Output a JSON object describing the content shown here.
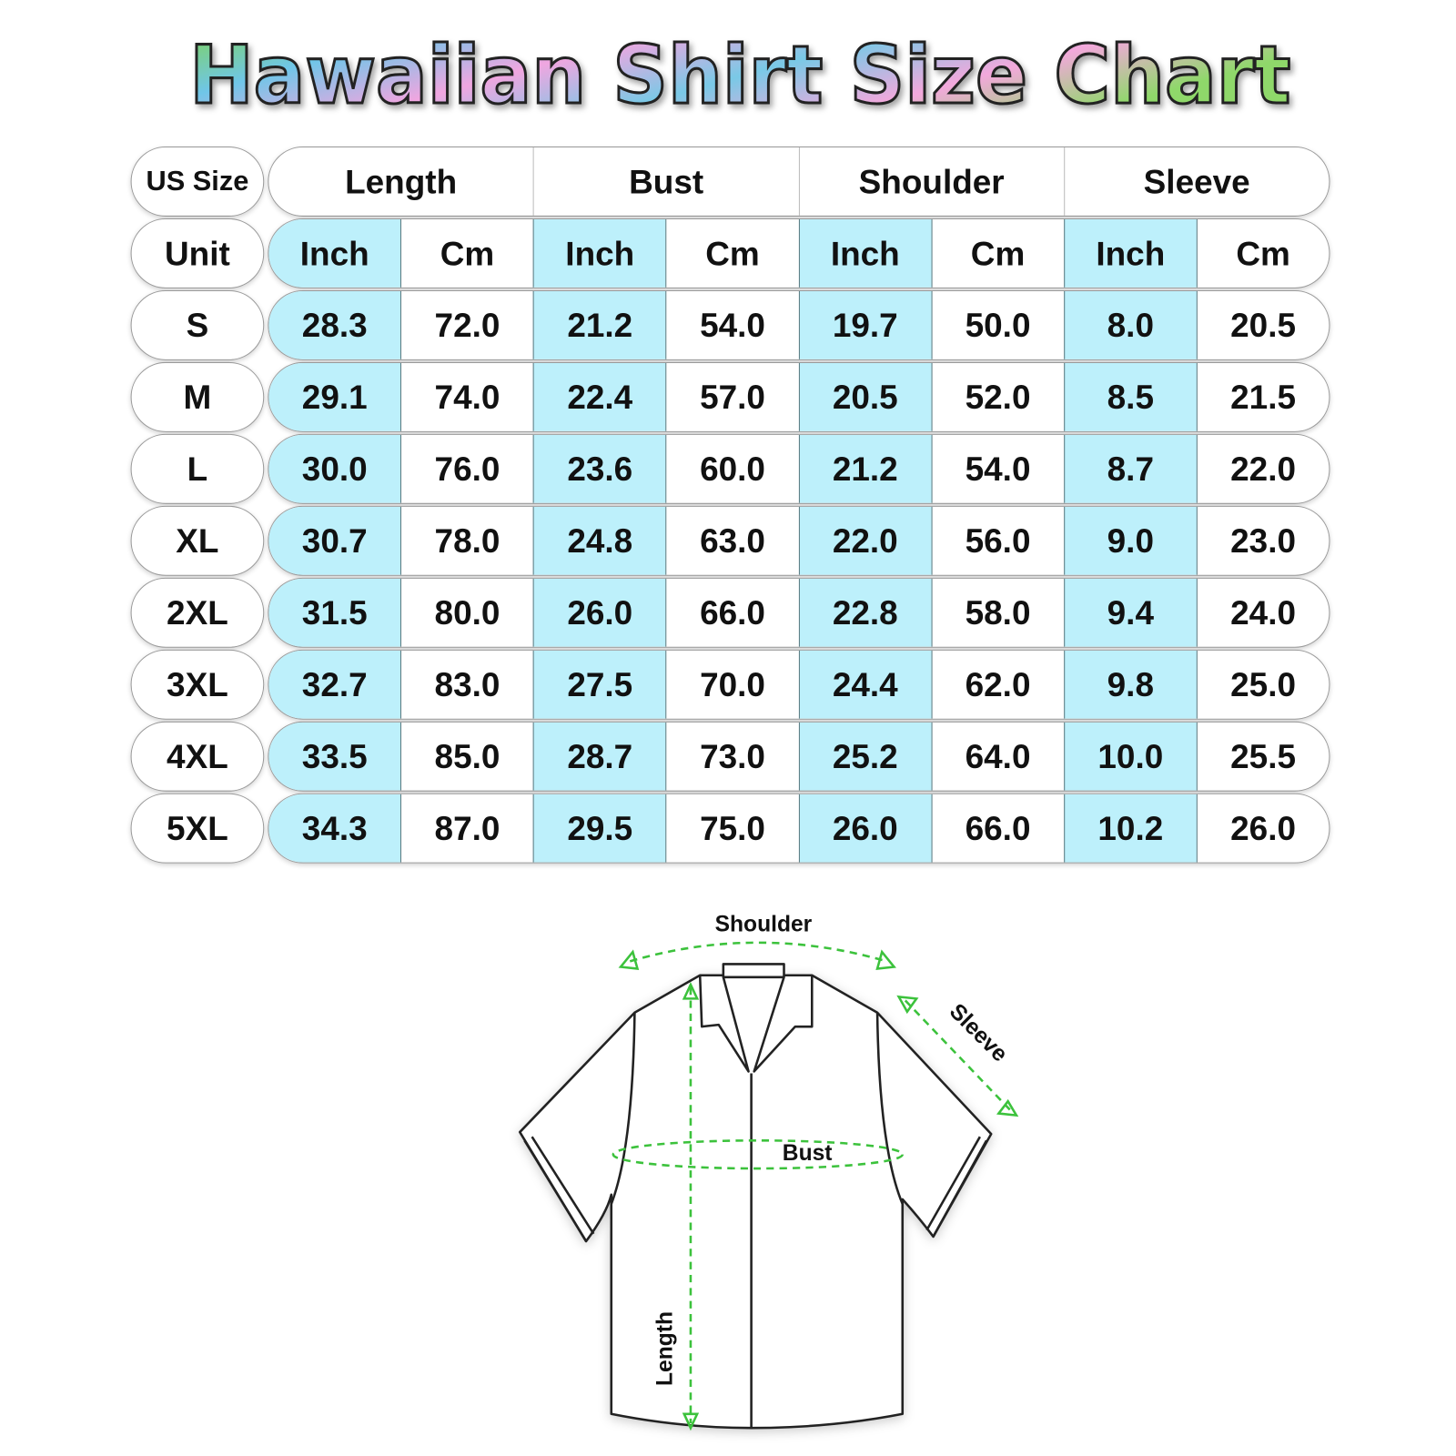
{
  "title": "Hawaiian Shirt Size Chart",
  "colors": {
    "inch_column": "#bdf0fb",
    "measure_line": "#3cc23c",
    "title_gradient": [
      "#7fd35a",
      "#6fc6e8",
      "#f0a6e0",
      "#79c9e6",
      "#8fd86a"
    ]
  },
  "table": {
    "corner_label": "US Size",
    "unit_label": "Unit",
    "groups": [
      "Length",
      "Bust",
      "Shoulder",
      "Sleeve"
    ],
    "units": [
      "Inch",
      "Cm",
      "Inch",
      "Cm",
      "Inch",
      "Cm",
      "Inch",
      "Cm"
    ],
    "rows": [
      {
        "size": "S",
        "values": [
          "28.3",
          "72.0",
          "21.2",
          "54.0",
          "19.7",
          "50.0",
          "8.0",
          "20.5"
        ]
      },
      {
        "size": "M",
        "values": [
          "29.1",
          "74.0",
          "22.4",
          "57.0",
          "20.5",
          "52.0",
          "8.5",
          "21.5"
        ]
      },
      {
        "size": "L",
        "values": [
          "30.0",
          "76.0",
          "23.6",
          "60.0",
          "21.2",
          "54.0",
          "8.7",
          "22.0"
        ]
      },
      {
        "size": "XL",
        "values": [
          "30.7",
          "78.0",
          "24.8",
          "63.0",
          "22.0",
          "56.0",
          "9.0",
          "23.0"
        ]
      },
      {
        "size": "2XL",
        "values": [
          "31.5",
          "80.0",
          "26.0",
          "66.0",
          "22.8",
          "58.0",
          "9.4",
          "24.0"
        ]
      },
      {
        "size": "3XL",
        "values": [
          "32.7",
          "83.0",
          "27.5",
          "70.0",
          "24.4",
          "62.0",
          "9.8",
          "25.0"
        ]
      },
      {
        "size": "4XL",
        "values": [
          "33.5",
          "85.0",
          "28.7",
          "73.0",
          "25.2",
          "64.0",
          "10.0",
          "25.5"
        ]
      },
      {
        "size": "5XL",
        "values": [
          "34.3",
          "87.0",
          "29.5",
          "75.0",
          "26.0",
          "66.0",
          "10.2",
          "26.0"
        ]
      }
    ]
  },
  "diagram": {
    "shoulder": "Shoulder",
    "sleeve": "Sleeve",
    "bust": "Bust",
    "length": "Length"
  }
}
